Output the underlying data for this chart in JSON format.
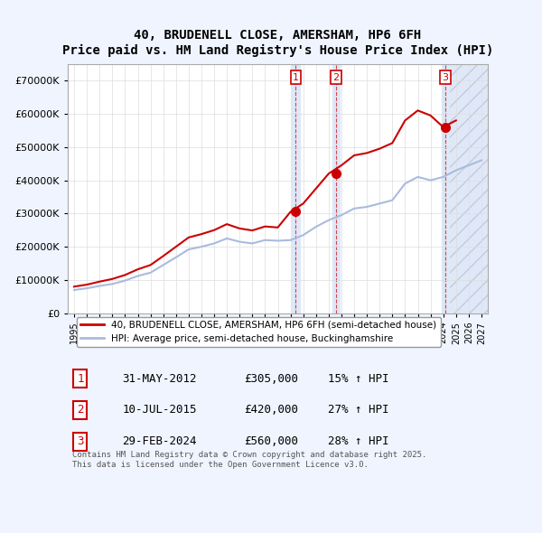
{
  "title": "40, BRUDENELL CLOSE, AMERSHAM, HP6 6FH",
  "subtitle": "Price paid vs. HM Land Registry's House Price Index (HPI)",
  "ylabel": "",
  "bg_color": "#f0f4ff",
  "plot_bg": "#ffffff",
  "red_color": "#cc0000",
  "blue_color": "#99bbdd",
  "transaction_dates": [
    "2012-05-31",
    "2015-07-10",
    "2024-02-29"
  ],
  "transaction_prices": [
    305000,
    420000,
    560000
  ],
  "transaction_labels": [
    "1",
    "2",
    "3"
  ],
  "transaction_hpi": [
    "15%",
    "27%",
    "28%"
  ],
  "legend_red": "40, BRUDENELL CLOSE, AMERSHAM, HP6 6FH (semi-detached house)",
  "legend_blue": "HPI: Average price, semi-detached house, Buckinghamshire",
  "footer": "Contains HM Land Registry data © Crown copyright and database right 2025.\nThis data is licensed under the Open Government Licence v3.0.",
  "table_rows": [
    [
      "1",
      "31-MAY-2012",
      "£305,000",
      "15% ↑ HPI"
    ],
    [
      "2",
      "10-JUL-2015",
      "£420,000",
      "27% ↑ HPI"
    ],
    [
      "3",
      "29-FEB-2024",
      "£560,000",
      "28% ↑ HPI"
    ]
  ],
  "xlim_start": 1994.5,
  "xlim_end": 2027.5,
  "ylim_min": 0,
  "ylim_max": 750000,
  "yticks": [
    0,
    100000,
    200000,
    300000,
    400000,
    500000,
    600000,
    700000
  ]
}
